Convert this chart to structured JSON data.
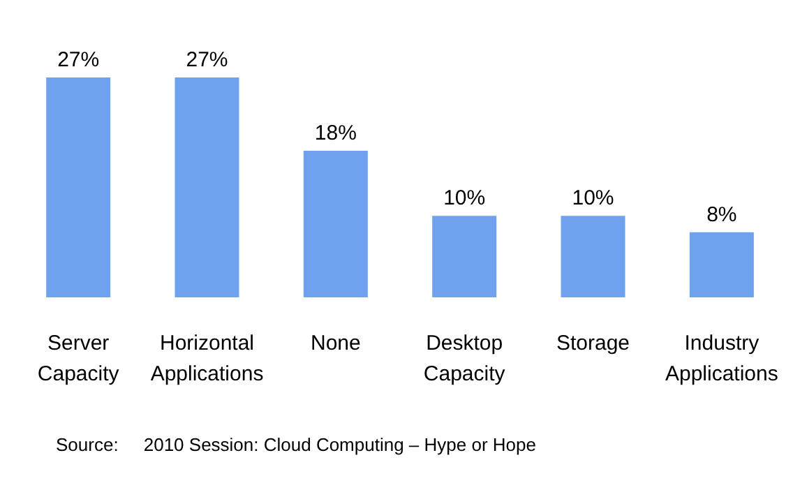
{
  "chart_data": {
    "type": "bar",
    "categories": [
      "Server Capacity",
      "Horizontal Applications",
      "None",
      "Desktop Capacity",
      "Storage",
      "Industry Applications"
    ],
    "values": [
      27,
      27,
      18,
      10,
      10,
      8
    ],
    "value_labels": [
      "27%",
      "27%",
      "18%",
      "10%",
      "10%",
      "8%"
    ],
    "color": "#6ea2ee",
    "annotations": [
      "Source:     2010 Session: Cloud Computing – Hype or Hope"
    ]
  }
}
